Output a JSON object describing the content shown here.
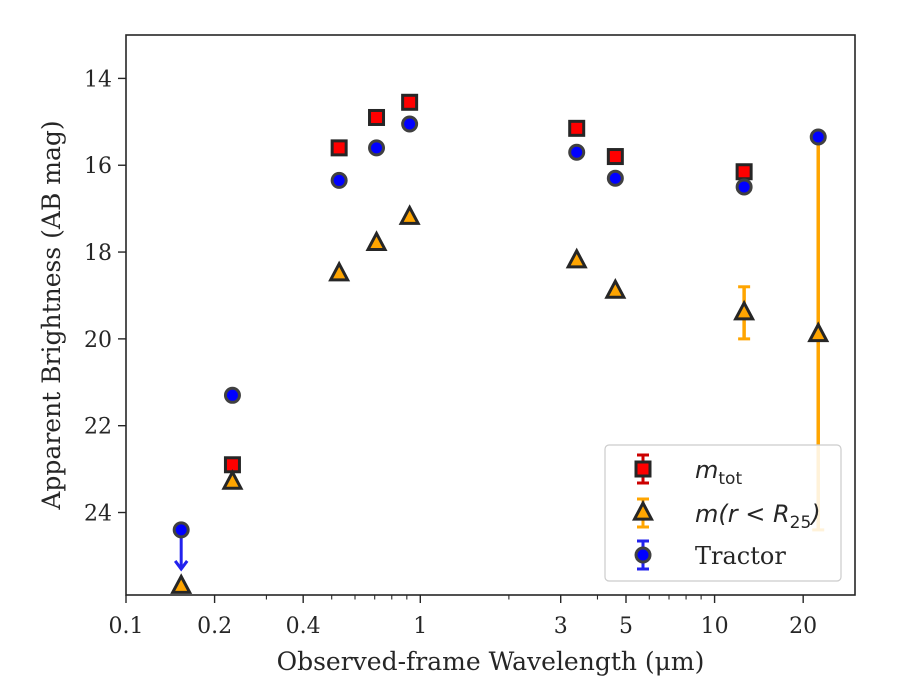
{
  "chart_data": {
    "type": "scatter",
    "xlabel": "Observed-frame Wavelength (μm)",
    "ylabel": "Apparent Brightness (AB mag)",
    "x_scale": "log",
    "y_inverted": true,
    "xlim": [
      0.1,
      30
    ],
    "ylim": [
      25.9,
      13.0
    ],
    "x_ticks": [
      0.1,
      0.2,
      0.4,
      1,
      3,
      5,
      10,
      20
    ],
    "x_tick_labels": [
      "0.1",
      "0.2",
      "0.4",
      "1",
      "3",
      "5",
      "10",
      "20"
    ],
    "y_ticks": [
      14,
      16,
      18,
      20,
      22,
      24
    ],
    "y_tick_labels": [
      "14",
      "16",
      "18",
      "20",
      "22",
      "24"
    ],
    "grid": false,
    "legend_position": "bottom-right",
    "series": [
      {
        "name_main": "m",
        "name_sub": "tot",
        "marker": "square",
        "color": "#ff0000",
        "edge_color": "#262626",
        "error_color": "#cc0000",
        "x": [
          0.23,
          0.53,
          0.71,
          0.92,
          3.4,
          4.6,
          12.6
        ],
        "y": [
          22.9,
          15.6,
          14.9,
          14.55,
          15.15,
          15.8,
          16.15
        ],
        "yerr": [
          0,
          0,
          0,
          0,
          0,
          0,
          0
        ]
      },
      {
        "name_main": "m(r < R",
        "name_sub": "25",
        "name_end": ")",
        "marker": "triangle",
        "color": "#ffa500",
        "edge_color": "#262626",
        "error_color": "#ffa500",
        "x": [
          0.154,
          0.23,
          0.53,
          0.71,
          0.92,
          3.4,
          4.6,
          12.6,
          22.5
        ],
        "y": [
          25.7,
          23.3,
          18.5,
          17.8,
          17.2,
          18.2,
          18.9,
          19.4,
          19.9
        ],
        "yerr": [
          0,
          0,
          0,
          0,
          0,
          0,
          0,
          0.6,
          4.5
        ]
      },
      {
        "name": "Tractor",
        "marker": "circle",
        "color": "#0000ff",
        "edge_color": "#404040",
        "error_color": "#2222ee",
        "x": [
          0.154,
          0.23,
          0.53,
          0.71,
          0.92,
          3.4,
          4.6,
          12.6,
          22.5
        ],
        "y": [
          24.4,
          21.3,
          16.35,
          15.6,
          15.05,
          15.7,
          16.3,
          16.5,
          15.35
        ],
        "yerr": [
          0,
          0,
          0,
          0,
          0,
          0,
          0,
          0,
          0
        ],
        "upper_limit_index": 0,
        "upper_limit_to": 25.3
      }
    ]
  }
}
